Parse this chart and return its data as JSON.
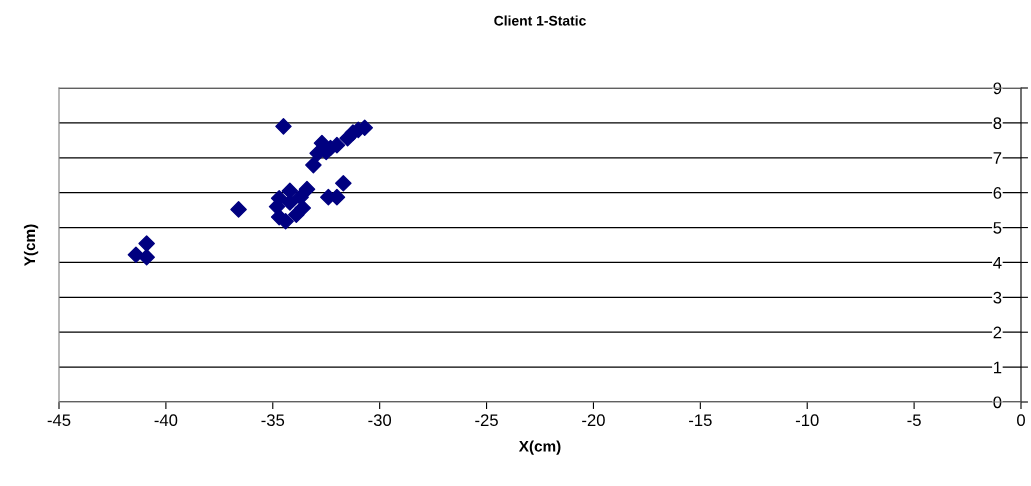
{
  "chart_data": {
    "type": "scatter",
    "title": "Client 1-Static",
    "xlabel": "X(cm)",
    "ylabel": "Y(cm)",
    "x": [
      -41.4,
      -40.9,
      -40.9,
      -36.6,
      -34.5,
      -30.7,
      -31.0,
      -31.25,
      -31.5,
      -32.0,
      -32.3,
      -32.7,
      -32.5,
      -32.9,
      -33.1,
      -31.7,
      -32.4,
      -32.0,
      -33.4,
      -34.2,
      -33.7,
      -34.7,
      -34.8,
      -33.6,
      -33.9,
      -34.4,
      -34.7,
      -34.2
    ],
    "series": [
      {
        "color": "#000080",
        "values": [
          4.22,
          4.54,
          4.15,
          5.52,
          7.9,
          7.86,
          7.8,
          7.72,
          7.56,
          7.36,
          7.28,
          7.42,
          7.17,
          7.13,
          6.79,
          6.27,
          5.87,
          5.87,
          6.1,
          6.05,
          5.87,
          5.84,
          5.6,
          5.56,
          5.37,
          5.18,
          5.3,
          5.72
        ]
      }
    ],
    "xlim": [
      -45,
      0
    ],
    "xticks": [
      -45,
      -40,
      -35,
      -30,
      -25,
      -20,
      -15,
      -10,
      -5,
      0
    ],
    "ylim": [
      0,
      9
    ],
    "yticks": [
      0,
      1,
      2,
      3,
      4,
      5,
      6,
      7,
      8,
      9
    ],
    "grid": "y",
    "marker": "diamond",
    "legend": false
  }
}
